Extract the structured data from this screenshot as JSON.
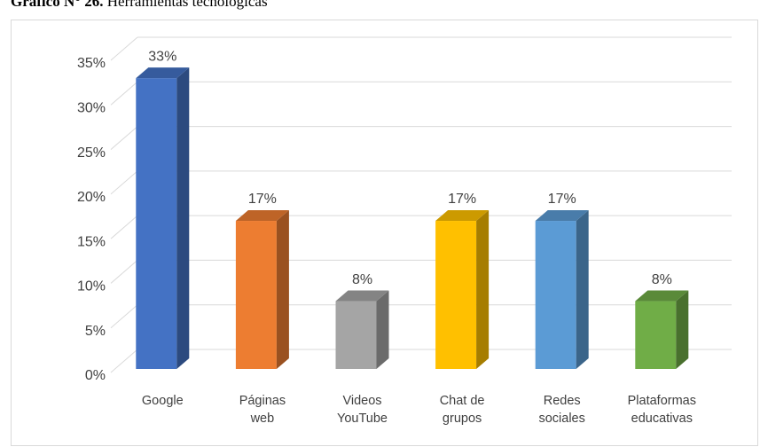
{
  "chart_data": {
    "type": "bar3d",
    "title_prefix": "Gráfico N° 26.",
    "title": "Herramientas tecnológicas",
    "categories": [
      "Google",
      "Páginas web",
      "Videos YouTube",
      "Chat de grupos",
      "Redes sociales",
      "Plataformas educativas"
    ],
    "values": [
      33,
      17,
      8,
      17,
      17,
      8
    ],
    "value_labels": [
      "33%",
      "17%",
      "8%",
      "17%",
      "17%",
      "8%"
    ],
    "colors": [
      "#4472c4",
      "#ed7d31",
      "#a5a5a5",
      "#ffc000",
      "#5b9bd5",
      "#70ad47"
    ],
    "ylim": [
      0,
      35
    ],
    "yticks": [
      {
        "value": 0,
        "label": "0%"
      },
      {
        "value": 5,
        "label": "5%"
      },
      {
        "value": 10,
        "label": "10%"
      },
      {
        "value": 15,
        "label": "15%"
      },
      {
        "value": 20,
        "label": "20%"
      },
      {
        "value": 25,
        "label": "25%"
      },
      {
        "value": 30,
        "label": "30%"
      },
      {
        "value": 35,
        "label": "35%"
      }
    ],
    "grid": true
  }
}
